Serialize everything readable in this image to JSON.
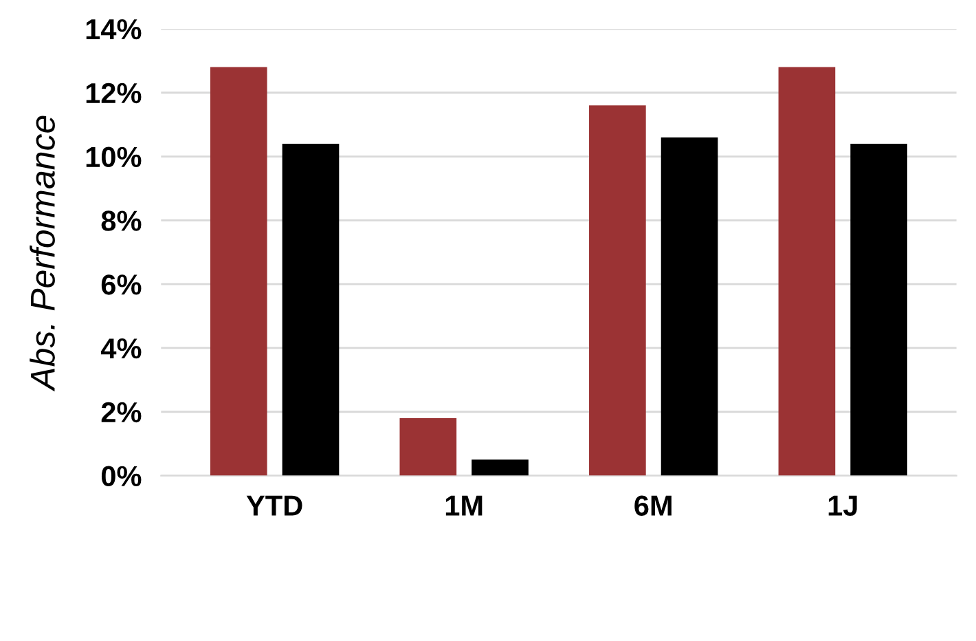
{
  "chart_data": {
    "type": "bar",
    "ylabel": "Abs. Performance",
    "categories": [
      "YTD",
      "1M",
      "6M",
      "1J"
    ],
    "series": [
      {
        "color": "#9b3334",
        "values": [
          12.8,
          1.8,
          11.6,
          12.8
        ]
      },
      {
        "color": "#000000",
        "values": [
          10.4,
          0.5,
          10.6,
          10.4
        ]
      }
    ],
    "ylim": [
      0,
      14
    ],
    "yticks": [
      {
        "value": 0,
        "label": "0%"
      },
      {
        "value": 2,
        "label": "2%"
      },
      {
        "value": 4,
        "label": "4%"
      },
      {
        "value": 6,
        "label": "6%"
      },
      {
        "value": 8,
        "label": "8%"
      },
      {
        "value": 10,
        "label": "10%"
      },
      {
        "value": 12,
        "label": "12%"
      },
      {
        "value": 14,
        "label": "14%"
      }
    ],
    "grid": "y"
  }
}
